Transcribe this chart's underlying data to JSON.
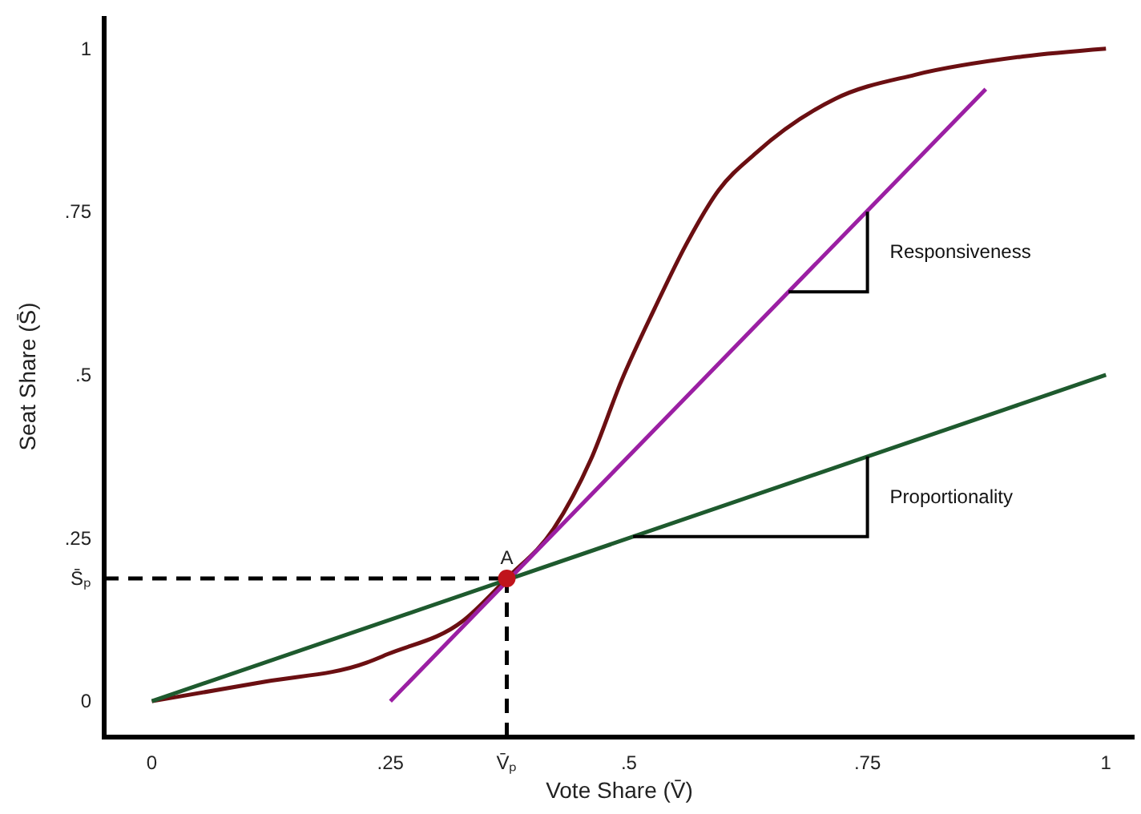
{
  "chart_data": {
    "type": "line",
    "xlabel": "Vote Share (V̄)",
    "ylabel": "Seat Share (S̄)",
    "xlim": [
      -0.05,
      1.03
    ],
    "ylim": [
      -0.055,
      1.05
    ],
    "xticks": [
      0,
      {
        "value": 0.25,
        "label": ".25"
      },
      {
        "value": 0.372,
        "label": "V̄ₚ"
      },
      {
        "value": 0.5,
        "label": ".5"
      },
      {
        "value": 0.75,
        "label": ".75"
      },
      1
    ],
    "yticks": [
      0,
      {
        "value": 0.188,
        "label": "S̄ₚ"
      },
      {
        "value": 0.25,
        "label": ".25"
      },
      {
        "value": 0.5,
        "label": ".5"
      },
      {
        "value": 0.75,
        "label": ".75"
      },
      1
    ],
    "series": [
      {
        "color": "#6b0f12",
        "x": [
          0,
          0.119,
          0.225,
          0.247,
          0.326,
          0.372,
          0.421,
          0.46,
          0.493,
          0.527,
          0.56,
          0.594,
          0.633,
          0.716,
          0.8,
          0.913,
          1
        ],
        "values": [
          0,
          0.03,
          0.059,
          0.072,
          0.123,
          0.188,
          0.264,
          0.37,
          0.494,
          0.602,
          0.7,
          0.783,
          0.84,
          0.923,
          0.96,
          0.988,
          1
        ]
      },
      {
        "color": "#9b1fa3",
        "x": [
          0.25,
          0.874
        ],
        "values": [
          0,
          0.938
        ]
      },
      {
        "color": "#1e5a2e",
        "x": [
          0,
          1
        ],
        "values": [
          0,
          0.5
        ]
      },
      {
        "type": "scatter",
        "name": "A",
        "color": "#c0141c",
        "marker": "circle",
        "x": [
          0.372
        ],
        "values": [
          0.188
        ]
      }
    ],
    "ref_lines": [
      {
        "axis": "x",
        "value": 0.372,
        "line_style": "dashed",
        "color": "#000000"
      },
      {
        "axis": "y",
        "value": 0.188,
        "line_style": "dashed",
        "color": "#000000"
      }
    ],
    "annotations": [
      {
        "text": "Responsiveness",
        "x": 0.75,
        "y": 0.75
      },
      {
        "text": "Proportionality",
        "x": 0.75,
        "y": 0.375
      }
    ]
  }
}
